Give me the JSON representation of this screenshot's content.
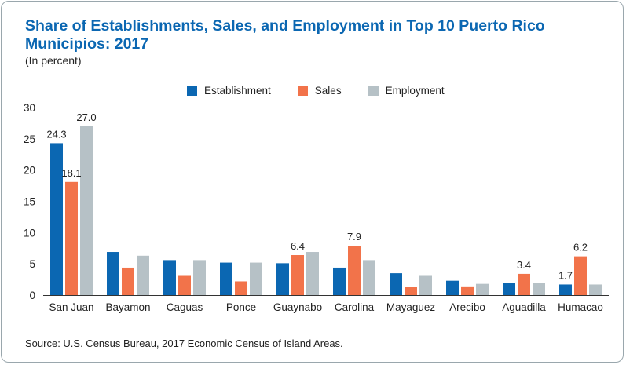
{
  "header": {
    "title": "Share of Establishments, Sales, and Employment in Top 10 Puerto Rico Municipios: 2017",
    "subtitle": "(In percent)"
  },
  "source": "Source: U.S. Census Bureau, 2017 Economic Census of Island Areas.",
  "colors": {
    "establishment": "#0b67b2",
    "sales": "#f2734a",
    "employment": "#b6c1c6",
    "title": "#0b67b2",
    "frame": "#9aa7ad"
  },
  "chart_data": {
    "type": "bar",
    "title": "Share of Establishments, Sales, and Employment in Top 10 Puerto Rico Municipios: 2017",
    "subtitle": "(In percent)",
    "xlabel": "",
    "ylabel": "",
    "categories": [
      "San Juan",
      "Bayamon",
      "Caguas",
      "Ponce",
      "Guaynabo",
      "Carolina",
      "Mayaguez",
      "Arecibo",
      "Aguadilla",
      "Humacao"
    ],
    "ylim": [
      0,
      30
    ],
    "yticks": [
      0,
      5,
      10,
      15,
      20,
      25,
      30
    ],
    "grid": false,
    "legend_position": "top-center",
    "series": [
      {
        "name": "Establishment",
        "color": "#0b67b2",
        "values": [
          24.3,
          6.9,
          5.6,
          5.2,
          5.1,
          4.4,
          3.5,
          2.3,
          2.0,
          1.7
        ]
      },
      {
        "name": "Sales",
        "color": "#f2734a",
        "values": [
          18.1,
          4.4,
          3.2,
          2.2,
          6.4,
          7.9,
          1.3,
          1.4,
          3.4,
          6.2
        ]
      },
      {
        "name": "Employment",
        "color": "#b6c1c6",
        "values": [
          27.0,
          6.3,
          5.6,
          5.2,
          6.9,
          5.6,
          3.2,
          1.8,
          1.9,
          1.7
        ]
      }
    ],
    "data_labels": [
      {
        "series": 0,
        "category": 0,
        "text": "24.3"
      },
      {
        "series": 1,
        "category": 0,
        "text": "18.1"
      },
      {
        "series": 2,
        "category": 0,
        "text": "27.0"
      },
      {
        "series": 1,
        "category": 4,
        "text": "6.4"
      },
      {
        "series": 1,
        "category": 5,
        "text": "7.9"
      },
      {
        "series": 1,
        "category": 8,
        "text": "3.4"
      },
      {
        "series": 0,
        "category": 9,
        "text": "1.7"
      },
      {
        "series": 1,
        "category": 9,
        "text": "6.2"
      }
    ]
  }
}
